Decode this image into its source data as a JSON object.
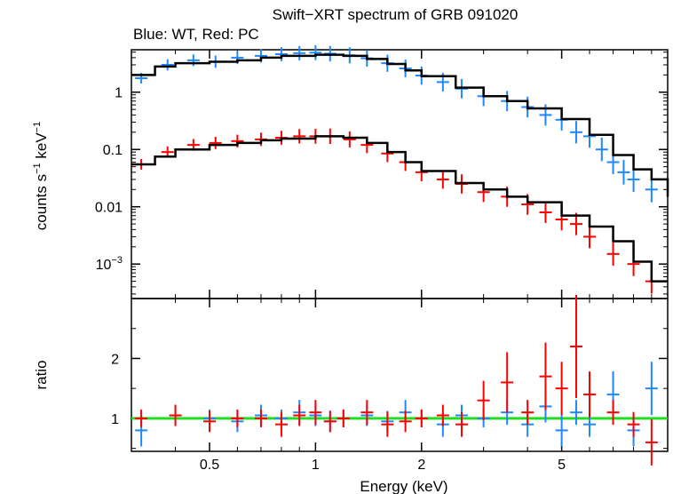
{
  "title": "Swift−XRT spectrum of GRB 091020",
  "subtitle": "Blue: WT, Red: PC",
  "chart_data": [
    {
      "type": "scatter",
      "panel": "spectrum",
      "ylabel_main": "counts s",
      "ylabel_exp1": "−1",
      "ylabel_mid": " keV",
      "ylabel_exp2": "−1",
      "xscale": "log",
      "yscale": "log",
      "xlim": [
        0.3,
        10
      ],
      "ylim": [
        0.00025,
        5.5
      ],
      "yticks": [
        {
          "value": 1,
          "label": "1",
          "sup": ""
        },
        {
          "value": 0.1,
          "label": "0.1",
          "sup": ""
        },
        {
          "value": 0.01,
          "label": "0.01",
          "sup": ""
        },
        {
          "value": 0.001,
          "label": "10",
          "sup": "−3"
        }
      ],
      "colors": {
        "WT": "#1e88ff",
        "PC": "#ff0000",
        "model": "#000000"
      },
      "series": [
        {
          "key": "WT",
          "x": [
            0.32,
            0.38,
            0.45,
            0.52,
            0.6,
            0.7,
            0.8,
            0.9,
            1.0,
            1.1,
            1.25,
            1.4,
            1.6,
            1.8,
            2.0,
            2.3,
            2.6,
            3.0,
            3.5,
            4.0,
            4.5,
            5.0,
            5.5,
            6.0,
            6.5,
            7.0,
            7.5,
            8.0,
            9.0
          ],
          "y": [
            1.75,
            3.0,
            3.6,
            3.4,
            4.0,
            4.3,
            4.6,
            4.8,
            4.9,
            4.7,
            4.4,
            3.9,
            3.2,
            2.6,
            1.95,
            1.5,
            1.15,
            0.85,
            0.7,
            0.55,
            0.4,
            0.33,
            0.2,
            0.17,
            0.1,
            0.06,
            0.04,
            0.03,
            0.02
          ]
        },
        {
          "key": "PC",
          "x": [
            0.32,
            0.38,
            0.45,
            0.52,
            0.6,
            0.7,
            0.8,
            0.9,
            1.0,
            1.1,
            1.25,
            1.4,
            1.6,
            1.8,
            2.0,
            2.3,
            2.6,
            3.0,
            3.5,
            4.0,
            4.5,
            5.0,
            5.5,
            6.0,
            7.0,
            8.0,
            9.0
          ],
          "y": [
            0.055,
            0.09,
            0.12,
            0.13,
            0.14,
            0.15,
            0.16,
            0.17,
            0.17,
            0.17,
            0.15,
            0.12,
            0.085,
            0.06,
            0.04,
            0.03,
            0.025,
            0.018,
            0.015,
            0.011,
            0.008,
            0.006,
            0.005,
            0.003,
            0.0015,
            0.001,
            0.0005
          ]
        }
      ],
      "model": [
        {
          "name": "WT",
          "x": [
            0.3,
            0.35,
            0.4,
            0.5,
            0.6,
            0.7,
            0.8,
            1.0,
            1.2,
            1.4,
            1.6,
            1.8,
            2.0,
            2.5,
            3.0,
            3.5,
            4.0,
            5.0,
            6.0,
            7.0,
            8.0,
            9.0,
            10.0
          ],
          "y": [
            2.0,
            2.8,
            3.2,
            3.4,
            3.6,
            4.0,
            4.3,
            4.5,
            4.3,
            3.8,
            3.1,
            2.4,
            1.9,
            1.2,
            0.85,
            0.7,
            0.52,
            0.34,
            0.18,
            0.08,
            0.045,
            0.03,
            0.015
          ]
        },
        {
          "name": "PC",
          "x": [
            0.3,
            0.35,
            0.4,
            0.5,
            0.6,
            0.7,
            0.8,
            1.0,
            1.2,
            1.4,
            1.6,
            1.8,
            2.0,
            2.5,
            3.0,
            3.5,
            4.0,
            5.0,
            6.0,
            7.0,
            8.0,
            9.0,
            10.0
          ],
          "y": [
            0.055,
            0.075,
            0.1,
            0.12,
            0.13,
            0.145,
            0.155,
            0.17,
            0.16,
            0.13,
            0.09,
            0.06,
            0.042,
            0.026,
            0.02,
            0.015,
            0.012,
            0.007,
            0.0045,
            0.0025,
            0.0011,
            0.0005,
            0.0005
          ]
        }
      ]
    },
    {
      "type": "scatter",
      "panel": "ratio",
      "ylabel": "ratio",
      "xlabel": "Energy (keV)",
      "xscale": "log",
      "xlim": [
        0.3,
        10
      ],
      "ylim": [
        0.45,
        3.0
      ],
      "xticks": [
        {
          "value": 0.5,
          "label": "0.5"
        },
        {
          "value": 1,
          "label": "1"
        },
        {
          "value": 2,
          "label": "2"
        },
        {
          "value": 5,
          "label": "5"
        }
      ],
      "yticks": [
        {
          "value": 1,
          "label": "1"
        },
        {
          "value": 2,
          "label": "2"
        }
      ],
      "reference_line": {
        "y": 1,
        "color": "#22dd22"
      },
      "series": [
        {
          "key": "WT",
          "x": [
            0.32,
            0.4,
            0.5,
            0.6,
            0.7,
            0.8,
            0.9,
            1.0,
            1.1,
            1.2,
            1.4,
            1.6,
            1.8,
            2.0,
            2.3,
            2.6,
            3.0,
            3.5,
            4.0,
            4.5,
            5.0,
            5.5,
            6.0,
            7.0,
            8.0,
            9.0
          ],
          "y": [
            0.8,
            1.05,
            1.0,
            0.95,
            1.05,
            1.0,
            1.1,
            1.05,
            0.95,
            1.0,
            1.05,
            0.95,
            1.1,
            1.0,
            0.9,
            1.05,
            1.0,
            1.1,
            0.9,
            1.2,
            0.8,
            1.1,
            0.9,
            1.4,
            0.8,
            1.5
          ]
        },
        {
          "key": "PC",
          "x": [
            0.32,
            0.4,
            0.5,
            0.6,
            0.7,
            0.8,
            0.9,
            1.0,
            1.1,
            1.2,
            1.4,
            1.6,
            1.8,
            2.0,
            2.3,
            2.6,
            3.0,
            3.5,
            4.0,
            4.5,
            5.0,
            5.5,
            6.0,
            7.0,
            8.0,
            9.0
          ],
          "y": [
            1.0,
            1.05,
            0.95,
            1.0,
            1.0,
            0.9,
            1.05,
            1.1,
            0.95,
            1.0,
            1.1,
            0.9,
            0.95,
            1.0,
            1.05,
            0.9,
            1.3,
            1.6,
            1.1,
            1.7,
            1.5,
            2.2,
            1.4,
            1.1,
            0.9,
            0.6
          ]
        }
      ]
    }
  ]
}
